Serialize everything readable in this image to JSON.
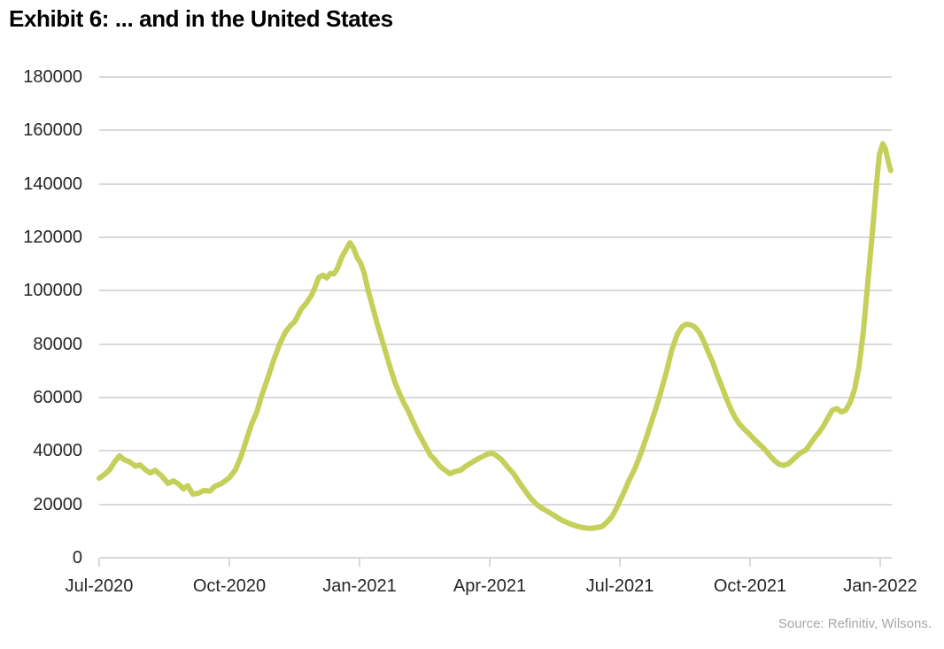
{
  "title": "Exhibit 6: ... and in the United States",
  "source": "Source: Refinitiv, Wilsons.",
  "chart_data": {
    "type": "line",
    "title": "Exhibit 6: ... and in the United States",
    "xlabel": "",
    "ylabel": "",
    "x_unit": "months since Jul-2020",
    "x_ticks": [
      "Jul-2020",
      "Oct-2020",
      "Jan-2021",
      "Apr-2021",
      "Jul-2021",
      "Oct-2021",
      "Jan-2022"
    ],
    "y_ticks": [
      0,
      20000,
      40000,
      60000,
      80000,
      100000,
      120000,
      140000,
      160000,
      180000
    ],
    "ylim": [
      0,
      180000
    ],
    "grid": "horizontal",
    "legend": "none",
    "colors": {
      "line": "#c4d05a",
      "grid": "#d9d9d9",
      "axis_text": "#262626",
      "source_text": "#a6a6a6"
    },
    "series": [
      {
        "color": "#c4d05a",
        "points": [
          [
            0,
            29800
          ],
          [
            0.12,
            31200
          ],
          [
            0.24,
            33000
          ],
          [
            0.35,
            35800
          ],
          [
            0.47,
            38200
          ],
          [
            0.57,
            36800
          ],
          [
            0.69,
            36000
          ],
          [
            0.84,
            34300
          ],
          [
            0.94,
            34800
          ],
          [
            1.08,
            32800
          ],
          [
            1.18,
            31800
          ],
          [
            1.29,
            32800
          ],
          [
            1.43,
            30800
          ],
          [
            1.59,
            27800
          ],
          [
            1.71,
            28800
          ],
          [
            1.84,
            27500
          ],
          [
            1.94,
            25800
          ],
          [
            2.04,
            27000
          ],
          [
            2.16,
            23800
          ],
          [
            2.29,
            24200
          ],
          [
            2.41,
            25200
          ],
          [
            2.55,
            25000
          ],
          [
            2.67,
            26800
          ],
          [
            2.82,
            27800
          ],
          [
            3,
            30000
          ],
          [
            3.14,
            33000
          ],
          [
            3.27,
            38000
          ],
          [
            3.39,
            44000
          ],
          [
            3.51,
            50000
          ],
          [
            3.63,
            54500
          ],
          [
            3.73,
            60000
          ],
          [
            3.88,
            67000
          ],
          [
            4.02,
            74000
          ],
          [
            4.16,
            80000
          ],
          [
            4.29,
            84500
          ],
          [
            4.41,
            87000
          ],
          [
            4.51,
            88500
          ],
          [
            4.65,
            93000
          ],
          [
            4.78,
            95500
          ],
          [
            4.9,
            98500
          ],
          [
            4.98,
            101500
          ],
          [
            5.06,
            105000
          ],
          [
            5.16,
            105800
          ],
          [
            5.24,
            104800
          ],
          [
            5.33,
            106500
          ],
          [
            5.41,
            106300
          ],
          [
            5.49,
            108300
          ],
          [
            5.59,
            112500
          ],
          [
            5.69,
            115500
          ],
          [
            5.78,
            118000
          ],
          [
            5.86,
            116000
          ],
          [
            5.94,
            112500
          ],
          [
            6.02,
            110500
          ],
          [
            6.1,
            107000
          ],
          [
            6.2,
            100000
          ],
          [
            6.31,
            93500
          ],
          [
            6.41,
            87500
          ],
          [
            6.51,
            82000
          ],
          [
            6.61,
            76500
          ],
          [
            6.71,
            71000
          ],
          [
            6.82,
            65500
          ],
          [
            6.92,
            61500
          ],
          [
            7.02,
            58000
          ],
          [
            7.12,
            55000
          ],
          [
            7.22,
            51500
          ],
          [
            7.33,
            47500
          ],
          [
            7.43,
            44500
          ],
          [
            7.53,
            41500
          ],
          [
            7.63,
            38500
          ],
          [
            7.73,
            36800
          ],
          [
            7.84,
            34500
          ],
          [
            7.94,
            33200
          ],
          [
            8.08,
            31500
          ],
          [
            8.2,
            32300
          ],
          [
            8.33,
            32800
          ],
          [
            8.45,
            34300
          ],
          [
            8.57,
            35500
          ],
          [
            8.69,
            36700
          ],
          [
            8.82,
            37800
          ],
          [
            8.94,
            38800
          ],
          [
            9.06,
            39200
          ],
          [
            9.16,
            38200
          ],
          [
            9.27,
            36800
          ],
          [
            9.41,
            34000
          ],
          [
            9.55,
            31500
          ],
          [
            9.67,
            28500
          ],
          [
            9.8,
            25500
          ],
          [
            9.92,
            22800
          ],
          [
            10.06,
            20300
          ],
          [
            10.2,
            18600
          ],
          [
            10.37,
            17000
          ],
          [
            10.53,
            15400
          ],
          [
            10.67,
            14000
          ],
          [
            10.84,
            12800
          ],
          [
            10.98,
            12000
          ],
          [
            11.14,
            11300
          ],
          [
            11.29,
            11000
          ],
          [
            11.43,
            11200
          ],
          [
            11.59,
            11700
          ],
          [
            11.71,
            13500
          ],
          [
            11.82,
            15500
          ],
          [
            11.92,
            18500
          ],
          [
            12,
            21300
          ],
          [
            12.1,
            24800
          ],
          [
            12.2,
            28600
          ],
          [
            12.35,
            33500
          ],
          [
            12.47,
            38500
          ],
          [
            12.59,
            44000
          ],
          [
            12.71,
            50000
          ],
          [
            12.84,
            56500
          ],
          [
            12.96,
            63000
          ],
          [
            13.08,
            70000
          ],
          [
            13.2,
            78000
          ],
          [
            13.33,
            84000
          ],
          [
            13.43,
            86500
          ],
          [
            13.53,
            87500
          ],
          [
            13.63,
            87200
          ],
          [
            13.73,
            86400
          ],
          [
            13.84,
            84200
          ],
          [
            13.94,
            80800
          ],
          [
            14.04,
            76800
          ],
          [
            14.14,
            73200
          ],
          [
            14.24,
            68500
          ],
          [
            14.35,
            64200
          ],
          [
            14.45,
            59900
          ],
          [
            14.55,
            55900
          ],
          [
            14.65,
            52600
          ],
          [
            14.76,
            50000
          ],
          [
            14.86,
            48300
          ],
          [
            14.96,
            46700
          ],
          [
            15.06,
            45000
          ],
          [
            15.16,
            43400
          ],
          [
            15.27,
            41700
          ],
          [
            15.37,
            40000
          ],
          [
            15.47,
            38000
          ],
          [
            15.57,
            36300
          ],
          [
            15.67,
            35000
          ],
          [
            15.78,
            34600
          ],
          [
            15.88,
            35200
          ],
          [
            15.98,
            36600
          ],
          [
            16.08,
            38200
          ],
          [
            16.18,
            39400
          ],
          [
            16.29,
            40400
          ],
          [
            16.39,
            42700
          ],
          [
            16.49,
            45000
          ],
          [
            16.59,
            47000
          ],
          [
            16.69,
            49300
          ],
          [
            16.8,
            52600
          ],
          [
            16.9,
            55300
          ],
          [
            17,
            55900
          ],
          [
            17.1,
            54600
          ],
          [
            17.2,
            55200
          ],
          [
            17.31,
            58300
          ],
          [
            17.41,
            63200
          ],
          [
            17.51,
            71500
          ],
          [
            17.61,
            84700
          ],
          [
            17.71,
            102300
          ],
          [
            17.82,
            122100
          ],
          [
            17.92,
            141000
          ],
          [
            17.98,
            150900
          ],
          [
            18.06,
            155000
          ],
          [
            18.12,
            153000
          ],
          [
            18.18,
            148600
          ],
          [
            18.24,
            145000
          ]
        ]
      }
    ]
  }
}
